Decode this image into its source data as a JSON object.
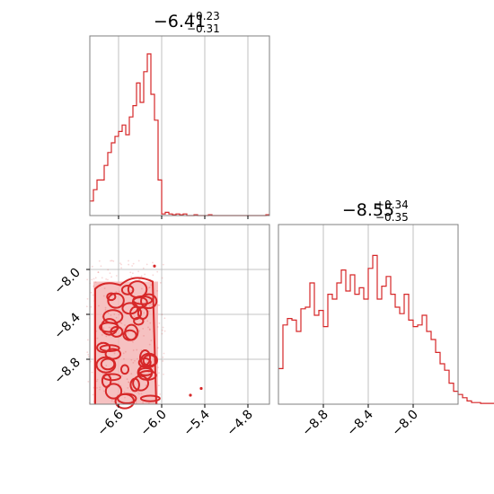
{
  "chart_data": {
    "type": "corner",
    "color": "#d62728",
    "contour_fill": "#f4b6b6",
    "grid": true,
    "panels": {
      "hist_x": {
        "type": "step-histogram",
        "title": {
          "base": "−6.41",
          "plus": "+0.23",
          "minus": "−0.31"
        },
        "xlim": [
          -7.0,
          -4.5
        ],
        "ylim": [
          0,
          1.0
        ],
        "x_grid": [
          -6.6,
          -6.0,
          -5.4,
          -4.8
        ],
        "bin_width": 0.05,
        "bin_start": -7.0,
        "values": [
          0.09,
          0.16,
          0.22,
          0.22,
          0.31,
          0.39,
          0.45,
          0.49,
          0.52,
          0.56,
          0.5,
          0.61,
          0.68,
          0.82,
          0.7,
          0.89,
          1.0,
          0.75,
          0.59,
          0.22,
          0.01,
          0.02,
          0.01,
          0.005,
          0.01,
          0.005,
          0.01,
          0.0,
          0.0,
          0.005,
          0.0,
          0.0,
          0.0,
          0.005,
          0.0,
          0.0,
          0.0,
          0.0,
          0.0,
          0.0,
          0.0,
          0.0,
          0.0,
          0.0,
          0.0,
          0.0,
          0.0,
          0.0,
          0.0,
          0.005
        ]
      },
      "scatter_xy": {
        "type": "scatter-contour",
        "xlim": [
          -7.0,
          -4.5
        ],
        "ylim": [
          -9.2,
          -7.6
        ],
        "x_ticks": [
          "−6.6",
          "−6.0",
          "−5.4",
          "−4.8"
        ],
        "x_tick_values": [
          -6.6,
          -6.0,
          -5.4,
          -4.8
        ],
        "y_ticks": [
          "−8.0",
          "−8.4",
          "−8.8"
        ],
        "y_tick_values": [
          -8.0,
          -8.4,
          -8.8
        ],
        "core_region": {
          "x": [
            -6.95,
            -6.05
          ],
          "y": [
            -9.2,
            -8.06
          ]
        },
        "outliers": [
          {
            "x": -5.6,
            "y": -9.12
          },
          {
            "x": -6.1,
            "y": -7.97
          },
          {
            "x": -5.45,
            "y": -9.06
          }
        ]
      },
      "hist_y": {
        "type": "step-histogram",
        "title": {
          "base": "−8.55",
          "plus": "+0.34",
          "minus": "−0.35"
        },
        "xlim": [
          -9.2,
          -7.6
        ],
        "ylim": [
          0,
          1.0
        ],
        "x_ticks": [
          "−8.8",
          "−8.4",
          "−8.0"
        ],
        "x_tick_values": [
          -8.8,
          -8.4,
          -8.0
        ],
        "bin_width": 0.04,
        "bin_start": -9.2,
        "values": [
          0.22,
          0.49,
          0.53,
          0.52,
          0.45,
          0.59,
          0.6,
          0.75,
          0.55,
          0.58,
          0.48,
          0.68,
          0.65,
          0.75,
          0.83,
          0.7,
          0.8,
          0.68,
          0.72,
          0.65,
          0.84,
          0.92,
          0.65,
          0.73,
          0.79,
          0.68,
          0.6,
          0.56,
          0.68,
          0.52,
          0.48,
          0.49,
          0.55,
          0.45,
          0.4,
          0.32,
          0.25,
          0.21,
          0.13,
          0.08,
          0.06,
          0.04,
          0.02,
          0.01,
          0.01,
          0.005,
          0.005,
          0.005,
          0.005,
          0.005
        ]
      }
    }
  }
}
